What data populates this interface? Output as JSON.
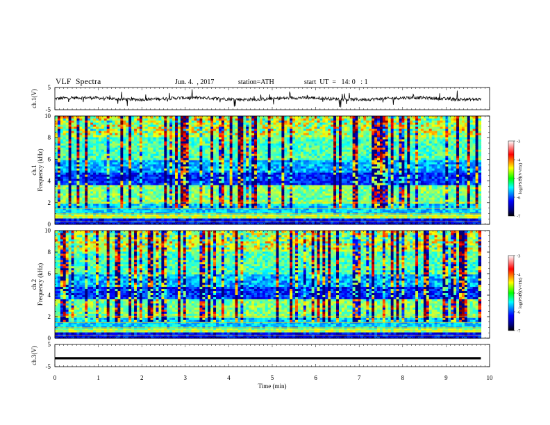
{
  "header": {
    "title": "VLF  Spectra",
    "date": "Jun. 4.  , 2017",
    "station": "station=ATH",
    "start": "start  UT  =   14: 0   : 1"
  },
  "chart_data": [
    {
      "type": "line",
      "ylabel": "ch.1(V)",
      "ylim": [
        -5,
        5
      ],
      "yticks": [
        "5",
        "-5"
      ],
      "xlim": [
        0,
        10
      ],
      "series": [
        {
          "x_range": [
            0,
            9.8
          ],
          "approx_level": 0
        }
      ]
    },
    {
      "type": "heatmap",
      "ylabel_line1": "ch.1",
      "ylabel_line2": "Frequency  (kHz)",
      "ylim": [
        0,
        10
      ],
      "yticks": [
        "0",
        "2",
        "4",
        "6",
        "8",
        "10"
      ],
      "xlim": [
        0,
        10
      ],
      "data_x_range": [
        0,
        9.8
      ],
      "colorbar": {
        "label": "log(PSD)(V²/Hz)",
        "ticks": [
          "-3",
          "-4",
          "-5",
          "-6",
          "-7"
        ],
        "range": [
          -7,
          -3
        ]
      }
    },
    {
      "type": "heatmap",
      "ylabel_line1": "ch.2",
      "ylabel_line2": "Frequency  (kHz)",
      "ylim": [
        0,
        10
      ],
      "yticks": [
        "0",
        "2",
        "4",
        "6",
        "8",
        "10"
      ],
      "xlim": [
        0,
        10
      ],
      "data_x_range": [
        0,
        9.8
      ],
      "colorbar": {
        "label": "log(PSD)(V²/Hz)",
        "ticks": [
          "-3",
          "-4",
          "-5",
          "-6",
          "-7"
        ],
        "range": [
          -7,
          -3
        ]
      }
    },
    {
      "type": "line",
      "ylabel": "ch.3(V)",
      "ylim": [
        -5,
        5
      ],
      "yticks": [
        "5",
        "-5"
      ],
      "xlim": [
        0,
        10
      ],
      "series": [
        {
          "x_range": [
            0,
            9.8
          ],
          "approx_level": -1.2
        }
      ]
    }
  ],
  "xaxis": {
    "label": "Time  (min)",
    "ticks": [
      "0",
      "1",
      "2",
      "3",
      "4",
      "5",
      "6",
      "7",
      "8",
      "9",
      "10"
    ]
  },
  "colors": {
    "line": "#000000",
    "jet": [
      "#00007f",
      "#0000ff",
      "#00ffff",
      "#00ff00",
      "#ffff00",
      "#ff0000",
      "#7f0000"
    ]
  }
}
